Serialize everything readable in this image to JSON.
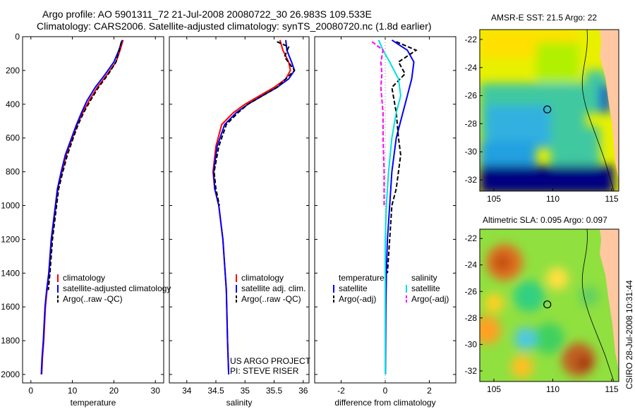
{
  "header": {
    "title_line1": "Argo profile: AO 5901311_72 21-Jul-2008 20080722_30 26.983S 109.533E",
    "title_line2": "Climatology: CARS2006. Satellite-adjusted climatology: synTS_20080720.nc (1.8d earlier)"
  },
  "colors": {
    "climatology": "#ff0000",
    "satellite": "#0000ff",
    "argo": "#000000",
    "salinity_satellite": "#00e0e0",
    "salinity_argo": "#ff00ff"
  },
  "maps": {
    "sst_title": "AMSR-E SST: 21.5 Argo: 22",
    "sla_title": "Altimetric SLA: 0.095 Argo: 0.097",
    "xticks": [
      "105",
      "110",
      "115"
    ],
    "yticks": [
      "-22",
      "-24",
      "-26",
      "-28",
      "-30",
      "-32"
    ],
    "float_lon": 109.533,
    "float_lat": -26.983
  },
  "credit": "CSIRO 28-Jul-2008 10:31:44",
  "chart_data": [
    {
      "type": "line",
      "xlabel": "temperature",
      "ylabel": "",
      "xlim": [
        -2,
        32
      ],
      "ylim": [
        2050,
        0
      ],
      "xticks": [
        "0",
        "10",
        "20",
        "30"
      ],
      "yticks": [
        "0",
        "200",
        "400",
        "600",
        "800",
        "1000",
        "1200",
        "1400",
        "1600",
        "1800",
        "2000"
      ],
      "legend": [
        "climatology",
        "satellite-adjusted climatology",
        "Argo(..raw -QC)"
      ],
      "legend_loc": "lower-right",
      "series": [
        {
          "name": "climatology",
          "color": "#ff0000",
          "style": "solid",
          "x": [
            22.2,
            21.5,
            20.5,
            18.5,
            16,
            14,
            12.5,
            11.2,
            10,
            8.5,
            7.5,
            6.5,
            6,
            5,
            4.4,
            3.9,
            3.5,
            3.1,
            2.8,
            2.6
          ],
          "y": [
            20,
            80,
            150,
            220,
            300,
            380,
            450,
            520,
            600,
            700,
            800,
            900,
            1000,
            1200,
            1400,
            1500,
            1600,
            1800,
            1900,
            2000
          ]
        },
        {
          "name": "satellite-adjusted climatology",
          "color": "#0000ff",
          "style": "solid",
          "x": [
            22.0,
            21.2,
            20,
            18,
            15.5,
            13.5,
            12.2,
            11,
            9.8,
            8.3,
            7.3,
            6.4,
            5.9,
            4.9,
            4.3,
            3.8,
            3.4,
            3.0,
            2.7,
            2.5
          ],
          "y": [
            20,
            80,
            150,
            220,
            300,
            380,
            450,
            520,
            600,
            700,
            800,
            900,
            1000,
            1200,
            1400,
            1500,
            1600,
            1800,
            1900,
            2000
          ]
        },
        {
          "name": "Argo(..raw -QC)",
          "color": "#000000",
          "style": "dashed",
          "x": [
            21.8,
            21.3,
            20.5,
            18.7,
            16.3,
            14.3,
            12.7,
            11.4,
            10.2,
            8.8,
            7.7,
            6.7,
            6.2,
            5.2,
            4.6,
            4.2
          ],
          "y": [
            30,
            80,
            150,
            220,
            300,
            380,
            450,
            520,
            600,
            700,
            800,
            900,
            1000,
            1200,
            1400,
            1500
          ]
        }
      ]
    },
    {
      "type": "line",
      "xlabel": "salinity",
      "xlim": [
        33.7,
        36.1
      ],
      "ylim": [
        2050,
        0
      ],
      "xticks": [
        "34",
        "34.5",
        "35",
        "35.5",
        "36"
      ],
      "legend": [
        "climatology",
        "satellite adj. clim.",
        "Argo(..raw -QC)"
      ],
      "legend_loc": "lower-right",
      "annotation": [
        "US ARGO PROJECT",
        "PI: STEVE RISER"
      ],
      "series": [
        {
          "name": "climatology",
          "color": "#ff0000",
          "style": "solid",
          "x": [
            35.6,
            35.65,
            35.75,
            35.78,
            35.7,
            35.5,
            35.25,
            35.0,
            34.8,
            34.6,
            34.5,
            34.45,
            34.48,
            34.55,
            34.62,
            34.68,
            34.7,
            34.72
          ],
          "y": [
            20,
            80,
            150,
            200,
            250,
            300,
            350,
            400,
            450,
            520,
            650,
            800,
            900,
            1000,
            1200,
            1500,
            1800,
            2000
          ]
        },
        {
          "name": "satellite adj. clim.",
          "color": "#0000ff",
          "style": "solid",
          "x": [
            35.7,
            35.72,
            35.8,
            35.85,
            35.75,
            35.55,
            35.3,
            35.05,
            34.85,
            34.65,
            34.52,
            34.46,
            34.48,
            34.55,
            34.62,
            34.68,
            34.7,
            34.72
          ],
          "y": [
            20,
            80,
            150,
            200,
            250,
            300,
            350,
            400,
            450,
            520,
            650,
            800,
            900,
            1000,
            1200,
            1500,
            1800,
            2000
          ]
        },
        {
          "name": "Argo(..raw -QC)",
          "color": "#000000",
          "style": "dashed",
          "x": [
            35.55,
            35.75,
            35.68,
            35.85,
            35.7,
            35.55,
            35.3,
            35.05,
            34.88,
            34.68,
            34.55,
            34.47,
            34.5,
            34.56
          ],
          "y": [
            30,
            60,
            120,
            200,
            250,
            300,
            350,
            400,
            450,
            520,
            650,
            800,
            900,
            1000
          ]
        }
      ]
    },
    {
      "type": "line",
      "xlabel": "difference from climatology",
      "xlim": [
        -3.2,
        3.2
      ],
      "ylim": [
        2050,
        0
      ],
      "xticks": [
        "-2",
        "0",
        "2"
      ],
      "legend": [
        "temperature",
        "satellite",
        "Argo(-adj)",
        "salinity",
        "satellite",
        "Argo(-adj)"
      ],
      "legend_loc": "lower-right",
      "series": [
        {
          "name": "satellite",
          "color": "#0000ff",
          "style": "solid",
          "x": [
            0.3,
            1.0,
            1.3,
            1.2,
            1.0,
            0.8,
            0.5,
            0.3,
            0.2,
            0.1,
            0.05,
            0.03,
            0.02,
            0.01
          ],
          "y": [
            20,
            80,
            150,
            250,
            350,
            450,
            600,
            800,
            1000,
            1200,
            1400,
            1600,
            1800,
            2000
          ]
        },
        {
          "name": "Argo(-adj)",
          "color": "#000000",
          "style": "dashed",
          "x": [
            0.5,
            1.4,
            0.6,
            0.9,
            0.3,
            0.5,
            0.6,
            0.7,
            0.5,
            0.3,
            0.2,
            0.1
          ],
          "y": [
            30,
            80,
            150,
            220,
            300,
            450,
            600,
            700,
            900,
            1000,
            1200,
            1400
          ]
        },
        {
          "name": "satellite",
          "color": "#00e0e0",
          "style": "solid",
          "x": [
            -0.3,
            -0.1,
            0.2,
            0.6,
            0.7,
            0.5,
            0.3,
            0.15,
            0.05,
            0.0,
            0.0,
            0.0
          ],
          "y": [
            20,
            80,
            150,
            250,
            350,
            450,
            600,
            800,
            1000,
            1200,
            1600,
            2000
          ]
        },
        {
          "name": "Argo(-adj)",
          "color": "#ff00ff",
          "style": "dashed",
          "x": [
            -0.6,
            -0.1,
            -0.2,
            -0.15,
            -0.2,
            -0.1,
            -0.1,
            -0.05,
            -0.05
          ],
          "y": [
            30,
            80,
            150,
            220,
            300,
            450,
            600,
            800,
            1000
          ]
        }
      ]
    }
  ]
}
